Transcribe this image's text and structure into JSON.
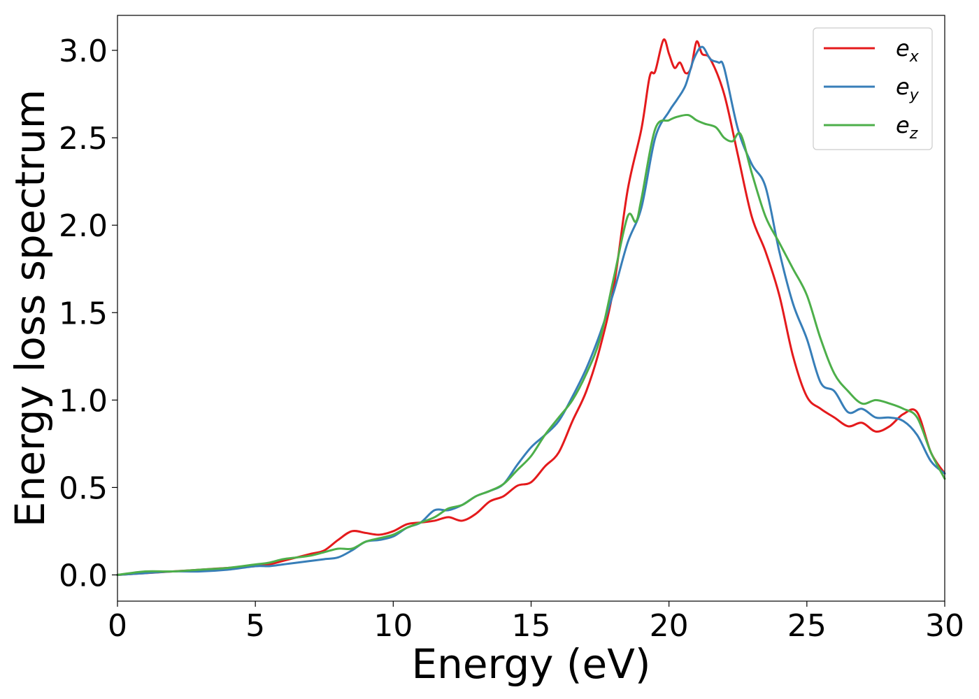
{
  "chart_data": {
    "type": "line",
    "title": "",
    "xlabel": "Energy (eV)",
    "ylabel": "Energy loss spectrum",
    "xlim": [
      0,
      30
    ],
    "ylim": [
      -0.15,
      3.2
    ],
    "xticks": [
      0,
      5,
      10,
      15,
      20,
      25,
      30
    ],
    "xtick_labels": [
      "0",
      "5",
      "10",
      "15",
      "20",
      "25",
      "30"
    ],
    "yticks": [
      0.0,
      0.5,
      1.0,
      1.5,
      2.0,
      2.5,
      3.0
    ],
    "ytick_labels": [
      "0.0",
      "0.5",
      "1.0",
      "1.5",
      "2.0",
      "2.5",
      "3.0"
    ],
    "grid": false,
    "legend_position": "top-right",
    "series": [
      {
        "name": "e_x",
        "label_base": "e",
        "label_sub": "x",
        "color": "#e41a1c",
        "x": [
          0,
          1,
          2,
          3,
          4,
          5,
          5.5,
          6,
          6.5,
          7,
          7.5,
          8,
          8.5,
          9,
          9.5,
          10,
          10.5,
          11,
          11.5,
          12,
          12.5,
          13,
          13.5,
          14,
          14.5,
          15,
          15.5,
          16,
          16.5,
          17,
          17.5,
          18,
          18.5,
          19,
          19.3,
          19.5,
          19.8,
          20,
          20.2,
          20.4,
          20.6,
          20.8,
          21,
          21.2,
          21.5,
          22,
          22.5,
          23,
          23.5,
          24,
          24.5,
          25,
          25.5,
          26,
          26.5,
          27,
          27.5,
          28,
          28.5,
          29,
          29.5,
          30
        ],
        "y": [
          0.0,
          0.01,
          0.02,
          0.03,
          0.04,
          0.05,
          0.06,
          0.08,
          0.1,
          0.12,
          0.14,
          0.2,
          0.25,
          0.24,
          0.23,
          0.25,
          0.29,
          0.3,
          0.31,
          0.33,
          0.31,
          0.35,
          0.42,
          0.45,
          0.51,
          0.53,
          0.62,
          0.7,
          0.88,
          1.05,
          1.3,
          1.65,
          2.2,
          2.55,
          2.85,
          2.88,
          3.06,
          2.98,
          2.9,
          2.93,
          2.87,
          2.9,
          3.05,
          2.98,
          2.95,
          2.75,
          2.4,
          2.05,
          1.85,
          1.6,
          1.25,
          1.02,
          0.95,
          0.9,
          0.85,
          0.87,
          0.82,
          0.85,
          0.92,
          0.93,
          0.7,
          0.58
        ]
      },
      {
        "name": "e_y",
        "label_base": "e",
        "label_sub": "y",
        "color": "#377eb8",
        "x": [
          0,
          1,
          2,
          3,
          4,
          5,
          5.5,
          6,
          6.5,
          7,
          7.5,
          8,
          8.5,
          9,
          9.5,
          10,
          10.5,
          11,
          11.5,
          12,
          12.5,
          13,
          13.5,
          14,
          14.5,
          15,
          15.5,
          16,
          16.5,
          17,
          17.5,
          18,
          18.5,
          19,
          19.5,
          20,
          20.3,
          20.6,
          20.9,
          21.2,
          21.5,
          21.8,
          22,
          22.5,
          23,
          23.5,
          24,
          24.5,
          25,
          25.5,
          26,
          26.5,
          27,
          27.5,
          28,
          28.5,
          29,
          29.5,
          30
        ],
        "y": [
          0.0,
          0.01,
          0.02,
          0.02,
          0.03,
          0.05,
          0.05,
          0.06,
          0.07,
          0.08,
          0.09,
          0.1,
          0.14,
          0.19,
          0.2,
          0.22,
          0.27,
          0.3,
          0.37,
          0.37,
          0.4,
          0.45,
          0.48,
          0.52,
          0.63,
          0.73,
          0.8,
          0.88,
          1.02,
          1.18,
          1.38,
          1.62,
          1.9,
          2.1,
          2.5,
          2.65,
          2.72,
          2.8,
          2.95,
          3.02,
          2.95,
          2.93,
          2.9,
          2.55,
          2.35,
          2.22,
          1.85,
          1.55,
          1.35,
          1.1,
          1.05,
          0.93,
          0.95,
          0.9,
          0.9,
          0.88,
          0.8,
          0.65,
          0.58
        ]
      },
      {
        "name": "e_z",
        "label_base": "e",
        "label_sub": "z",
        "color": "#4daf4a",
        "x": [
          0,
          1,
          2,
          3,
          4,
          5,
          5.5,
          6,
          6.5,
          7,
          7.5,
          8,
          8.5,
          9,
          9.5,
          10,
          10.5,
          11,
          11.5,
          12,
          12.5,
          13,
          13.5,
          14,
          14.5,
          15,
          15.5,
          16,
          16.5,
          17,
          17.5,
          18,
          18.5,
          18.8,
          19,
          19.5,
          20,
          20.3,
          20.7,
          21,
          21.3,
          21.7,
          22,
          22.3,
          22.6,
          23,
          23.5,
          24,
          24.5,
          25,
          25.5,
          26,
          26.5,
          27,
          27.5,
          28,
          28.5,
          29,
          29.5,
          30
        ],
        "y": [
          0.0,
          0.02,
          0.02,
          0.03,
          0.04,
          0.06,
          0.07,
          0.09,
          0.1,
          0.11,
          0.13,
          0.15,
          0.15,
          0.19,
          0.21,
          0.23,
          0.27,
          0.3,
          0.33,
          0.38,
          0.4,
          0.45,
          0.48,
          0.52,
          0.6,
          0.68,
          0.8,
          0.9,
          1.0,
          1.15,
          1.35,
          1.7,
          2.05,
          2.02,
          2.15,
          2.55,
          2.6,
          2.62,
          2.63,
          2.6,
          2.58,
          2.56,
          2.5,
          2.48,
          2.52,
          2.3,
          2.05,
          1.9,
          1.75,
          1.6,
          1.35,
          1.15,
          1.05,
          0.98,
          1.0,
          0.98,
          0.95,
          0.9,
          0.7,
          0.55
        ]
      }
    ]
  }
}
